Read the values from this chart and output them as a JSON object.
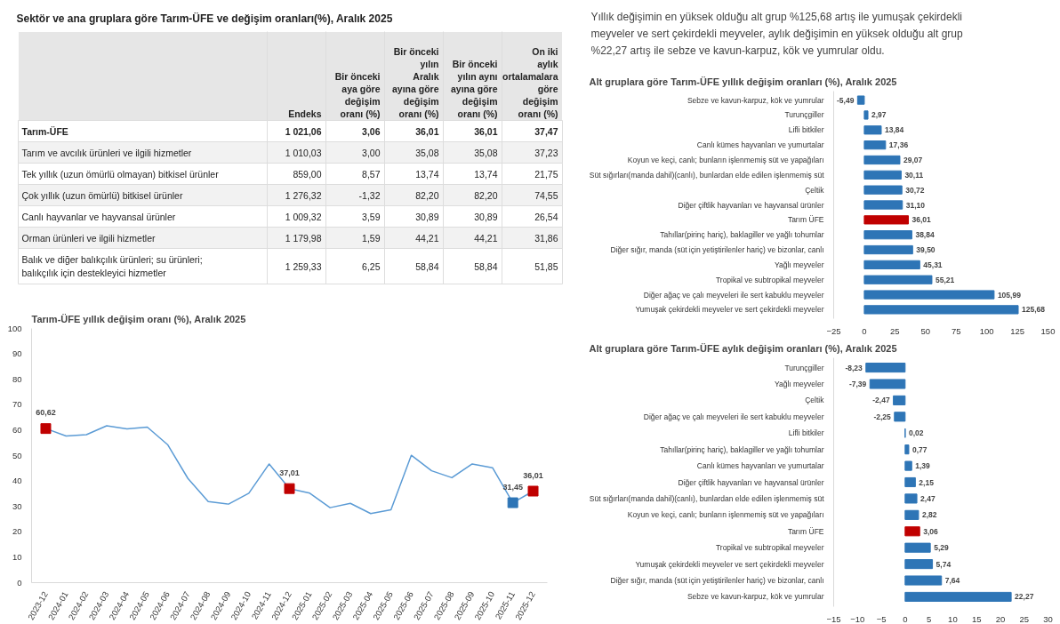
{
  "chart_data": [
    {
      "type": "other",
      "title": "Sektör ve ana gruplara göre Tarım-ÜFE ve değişim oranları(%), Aralık 2025",
      "categories": [
        "Endeks",
        "Bir önceki aya göre değişim oranı (%)",
        "Bir önceki yılın Aralık ayına göre değişim oranı (%)",
        "Bir önceki yılın aynı ayına göre değişim oranı (%)",
        "On iki aylık ortalamalara göre değişim oranı (%)"
      ],
      "y_categories": [
        "Tarım-ÜFE",
        "Tarım ve avcılık ürünleri ve ilgili hizmetler",
        "Tek yıllık (uzun ömürlü olmayan) bitkisel ürünler",
        "Çok yıllık (uzun ömürlü) bitkisel ürünler",
        "Canlı hayvanlar ve hayvansal ürünler",
        "Orman ürünleri ve ilgili hizmetler",
        "Balık ve diğer balıkçılık ürünleri; su ürünleri; balıkçılık için destekleyici hizmetler"
      ],
      "cell_labels": [
        [
          "1 021,06",
          "3,06",
          "36,01",
          "36,01",
          "37,47"
        ],
        [
          "1 010,03",
          "3,00",
          "35,08",
          "35,08",
          "37,23"
        ],
        [
          "859,00",
          "8,57",
          "13,74",
          "13,74",
          "21,75"
        ],
        [
          "1 276,32",
          "-1,32",
          "82,20",
          "82,20",
          "74,55"
        ],
        [
          "1 009,32",
          "3,59",
          "30,89",
          "30,89",
          "26,54"
        ],
        [
          "1 179,98",
          "1,59",
          "44,21",
          "44,21",
          "31,86"
        ],
        [
          "1 259,33",
          "6,25",
          "58,84",
          "58,84",
          "51,85"
        ]
      ]
    },
    {
      "type": "other",
      "annotations": [
        "Yıllık değişimin en yüksek olduğu alt grup %125,68 artış ile yumuşak çekirdekli meyveler ve sert çekirdekli meyveler, aylık değişimin en yüksek olduğu alt grup %22,27 artış ile sebze ve kavun-karpuz, kök ve yumrular oldu."
      ]
    },
    {
      "type": "bar",
      "orientation": "horizontal",
      "title": "Alt gruplara göre Tarım-ÜFE yıllık değişim oranları (%), Aralık 2025",
      "categories": [
        "Sebze ve kavun-karpuz, kök ve yumrular",
        "Turunçgiller",
        "Lifli bitkiler",
        "Canlı kümes hayvanları ve yumurtalar",
        "Koyun ve keçi, canlı; bunların işlenmemiş süt ve yapağıları",
        "Süt sığırları(manda dahil)(canlı), bunlardan elde edilen işlenmemiş süt",
        "Çeltik",
        "Diğer çiftlik hayvanları ve hayvansal ürünler",
        "Tarım ÜFE",
        "Tahıllar(pirinç hariç), baklagiller ve yağlı tohumlar",
        "Diğer sığır, manda (süt için yetiştirilenler hariç) ve bizonlar, canlı",
        "Yağlı meyveler",
        "Tropikal ve subtropikal meyveler",
        "Diğer ağaç ve çalı meyveleri ile sert kabuklu meyveler",
        "Yumuşak çekirdekli meyveler ve sert çekirdekli meyveler"
      ],
      "values": [
        -5.49,
        2.97,
        13.84,
        17.36,
        29.07,
        30.11,
        30.72,
        31.1,
        36.01,
        38.84,
        39.5,
        45.31,
        55.21,
        105.99,
        125.68
      ],
      "value_labels": [
        "-5,49",
        "2,97",
        "13,84",
        "17,36",
        "29,07",
        "30,11",
        "30,72",
        "31,10",
        "36,01",
        "38,84",
        "39,50",
        "45,31",
        "55,21",
        "105,99",
        "125,68"
      ],
      "colors": [
        "#2e75b6",
        "#2e75b6",
        "#2e75b6",
        "#2e75b6",
        "#2e75b6",
        "#2e75b6",
        "#2e75b6",
        "#2e75b6",
        "#c00000",
        "#2e75b6",
        "#2e75b6",
        "#2e75b6",
        "#2e75b6",
        "#2e75b6",
        "#2e75b6"
      ],
      "xlim": [
        -25,
        150
      ],
      "xticks": [
        -25,
        0,
        25,
        50,
        75,
        100,
        125,
        150
      ]
    },
    {
      "type": "line",
      "title": "Tarım-ÜFE yıllık değişim oranı (%), Aralık 2025",
      "categories": [
        "2023-12",
        "2024-01",
        "2024-02",
        "2024-03",
        "2024-04",
        "2024-05",
        "2024-06",
        "2024-07",
        "2024-08",
        "2024-09",
        "2024-10",
        "2024-11",
        "2024-12",
        "2025-01",
        "2025-02",
        "2025-03",
        "2025-04",
        "2025-05",
        "2025-06",
        "2025-07",
        "2025-08",
        "2025-09",
        "2025-10",
        "2025-11",
        "2025-12"
      ],
      "ylim": [
        0,
        100
      ],
      "yticks": [
        0,
        10,
        20,
        30,
        40,
        50,
        60,
        70,
        80,
        90,
        100
      ],
      "series": [
        {
          "type": "line",
          "color": "#5b9bd5",
          "values": [
            60.62,
            57.7,
            58.2,
            61.7,
            60.5,
            61.2,
            54.3,
            41.0,
            31.9,
            30.9,
            35.2,
            46.7,
            37.01,
            35.2,
            29.5,
            31.2,
            27.2,
            28.7,
            50.1,
            44.0,
            41.3,
            46.7,
            45.2,
            31.45,
            36.01
          ]
        },
        {
          "type": "scatter",
          "marker": "square",
          "values": [
            60.62,
            null,
            null,
            null,
            null,
            null,
            null,
            null,
            null,
            null,
            null,
            null,
            37.01,
            null,
            null,
            null,
            null,
            null,
            null,
            null,
            null,
            null,
            null,
            31.45,
            36.01
          ],
          "colors": [
            "#c00000",
            null,
            null,
            null,
            null,
            null,
            null,
            null,
            null,
            null,
            null,
            null,
            "#c00000",
            null,
            null,
            null,
            null,
            null,
            null,
            null,
            null,
            null,
            null,
            "#2e75b6",
            "#c00000"
          ],
          "value_labels": [
            "60,62",
            null,
            null,
            null,
            null,
            null,
            null,
            null,
            null,
            null,
            null,
            null,
            "37,01",
            null,
            null,
            null,
            null,
            null,
            null,
            null,
            null,
            null,
            null,
            "31,45",
            "36,01"
          ]
        }
      ]
    },
    {
      "type": "bar",
      "orientation": "horizontal",
      "title": "Alt gruplara göre Tarım-ÜFE aylık değişim oranları (%), Aralık 2025",
      "categories": [
        "Turunçgiller",
        "Yağlı meyveler",
        "Çeltik",
        "Diğer ağaç ve çalı meyveleri ile sert kabuklu meyveler",
        "Lifli bitkiler",
        "Tahıllar(pirinç hariç), baklagiller ve yağlı tohumlar",
        "Canlı kümes hayvanları ve yumurtalar",
        "Diğer çiftlik hayvanları ve hayvansal ürünler",
        "Süt sığırları(manda dahil)(canlı), bunlardan elde edilen işlenmemiş süt",
        "Koyun ve keçi, canlı; bunların işlenmemiş süt ve yapağıları",
        "Tarım ÜFE",
        "Tropikal ve subtropikal meyveler",
        "Yumuşak çekirdekli meyveler ve sert çekirdekli meyveler",
        "Diğer sığır, manda (süt için yetiştirilenler hariç) ve bizonlar, canlı",
        "Sebze ve kavun-karpuz, kök ve yumrular"
      ],
      "values": [
        -8.23,
        -7.39,
        -2.47,
        -2.25,
        0.02,
        0.77,
        1.39,
        2.15,
        2.47,
        2.82,
        3.06,
        5.29,
        5.74,
        7.64,
        22.27
      ],
      "value_labels": [
        "-8,23",
        "-7,39",
        "-2,47",
        "-2,25",
        "0,02",
        "0,77",
        "1,39",
        "2,15",
        "2,47",
        "2,82",
        "3,06",
        "5,29",
        "5,74",
        "7,64",
        "22,27"
      ],
      "colors": [
        "#2e75b6",
        "#2e75b6",
        "#2e75b6",
        "#2e75b6",
        "#2e75b6",
        "#2e75b6",
        "#2e75b6",
        "#2e75b6",
        "#2e75b6",
        "#2e75b6",
        "#c00000",
        "#2e75b6",
        "#2e75b6",
        "#2e75b6",
        "#2e75b6"
      ],
      "xlim": [
        -15,
        30
      ],
      "xticks": [
        -15,
        -10,
        -5,
        0,
        5,
        10,
        15,
        20,
        25,
        30
      ]
    }
  ]
}
